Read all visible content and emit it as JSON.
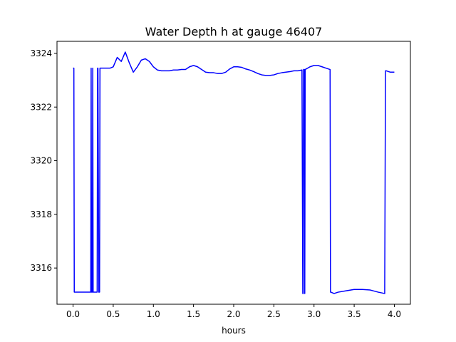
{
  "chart_data": {
    "type": "line",
    "title": "Water Depth h at gauge 46407",
    "xlabel": "hours",
    "ylabel": "",
    "xlim": [
      -0.2,
      4.2
    ],
    "ylim": [
      3314.65,
      3324.45
    ],
    "x_ticks": [
      0.0,
      0.5,
      1.0,
      1.5,
      2.0,
      2.5,
      3.0,
      3.5,
      4.0
    ],
    "x_tick_labels": [
      "0.0",
      "0.5",
      "1.0",
      "1.5",
      "2.0",
      "2.5",
      "3.0",
      "3.5",
      "4.0"
    ],
    "y_ticks": [
      3316,
      3318,
      3320,
      3322,
      3324
    ],
    "y_tick_labels": [
      "3316",
      "3318",
      "3320",
      "3322",
      "3324"
    ],
    "grid": false,
    "legend": "none",
    "series": [
      {
        "color": "#0000ff",
        "x": [
          0.0,
          0.01,
          0.015,
          0.02,
          0.2,
          0.22,
          0.225,
          0.23,
          0.24,
          0.245,
          0.25,
          0.3,
          0.305,
          0.31,
          0.32,
          0.33,
          0.335,
          0.34,
          0.36,
          0.37,
          0.38,
          0.42,
          0.46,
          0.5,
          0.55,
          0.6,
          0.65,
          0.7,
          0.75,
          0.8,
          0.85,
          0.9,
          0.95,
          1.0,
          1.05,
          1.1,
          1.15,
          1.2,
          1.25,
          1.3,
          1.35,
          1.4,
          1.45,
          1.5,
          1.55,
          1.6,
          1.65,
          1.7,
          1.75,
          1.8,
          1.85,
          1.9,
          1.95,
          2.0,
          2.05,
          2.1,
          2.15,
          2.2,
          2.25,
          2.3,
          2.35,
          2.4,
          2.45,
          2.5,
          2.55,
          2.6,
          2.65,
          2.7,
          2.75,
          2.8,
          2.85,
          2.86,
          2.865,
          2.87,
          2.88,
          2.885,
          2.89,
          2.95,
          3.0,
          3.05,
          3.1,
          3.15,
          3.2,
          3.205,
          3.21,
          3.25,
          3.3,
          3.4,
          3.5,
          3.6,
          3.7,
          3.8,
          3.88,
          3.89,
          3.9,
          3.95,
          4.0
        ],
        "y": [
          3323.45,
          3323.45,
          3315.1,
          3315.1,
          3315.1,
          3315.1,
          3323.45,
          3315.1,
          3315.1,
          3323.45,
          3315.1,
          3315.1,
          3323.45,
          3323.45,
          3315.1,
          3315.1,
          3323.45,
          3323.45,
          3323.45,
          3323.45,
          3323.45,
          3323.45,
          3323.45,
          3323.5,
          3323.85,
          3323.7,
          3324.05,
          3323.65,
          3323.3,
          3323.5,
          3323.75,
          3323.8,
          3323.7,
          3323.5,
          3323.38,
          3323.35,
          3323.35,
          3323.35,
          3323.38,
          3323.38,
          3323.4,
          3323.4,
          3323.5,
          3323.55,
          3323.5,
          3323.4,
          3323.3,
          3323.28,
          3323.28,
          3323.25,
          3323.25,
          3323.3,
          3323.42,
          3323.5,
          3323.5,
          3323.48,
          3323.42,
          3323.38,
          3323.32,
          3323.25,
          3323.2,
          3323.18,
          3323.18,
          3323.2,
          3323.25,
          3323.28,
          3323.3,
          3323.32,
          3323.35,
          3323.35,
          3323.38,
          3315.05,
          3315.05,
          3323.4,
          3323.4,
          3315.05,
          3323.4,
          3323.5,
          3323.55,
          3323.55,
          3323.5,
          3323.45,
          3323.4,
          3315.1,
          3315.1,
          3315.05,
          3315.1,
          3315.15,
          3315.2,
          3315.2,
          3315.18,
          3315.1,
          3315.05,
          3323.35,
          3323.35,
          3323.3,
          3323.3
        ]
      }
    ]
  }
}
